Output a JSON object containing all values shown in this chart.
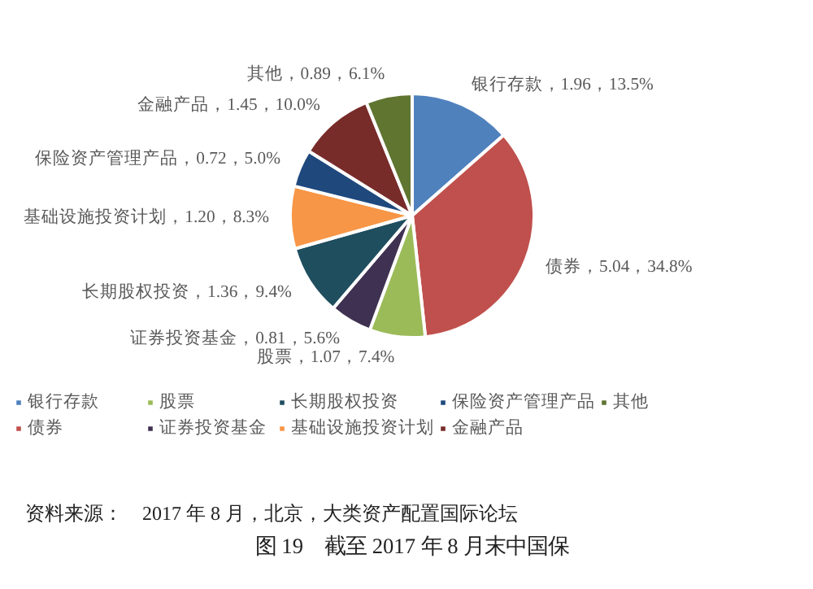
{
  "chart_data": {
    "type": "pie",
    "title": "图 19　截至 2017 年 8 月末中国保",
    "categories": [
      "银行存款",
      "债券",
      "股票",
      "证券投资基金",
      "长期股权投资",
      "基础设施投资计划",
      "保险资产管理产品",
      "金融产品",
      "其他"
    ],
    "values": [
      1.96,
      5.04,
      1.07,
      0.81,
      1.36,
      1.2,
      0.72,
      1.45,
      0.89
    ],
    "colors": [
      "#4f81bd",
      "#c0504d",
      "#9bbb59",
      "#3f3151",
      "#1f4e5f",
      "#f79646",
      "#1f497d",
      "#772c2a",
      "#5f7530"
    ],
    "value_labels": [
      "银行存款，1.96，13.5%",
      "债券，5.04，34.8%",
      "股票，1.07，7.4%",
      "证券投资基金，0.81，5.6%",
      "长期股权投资，1.36，9.4%",
      "基础设施投资计划，1.20，8.3%",
      "保险资产管理产品，0.72，5.0%",
      "金融产品，1.45，10.0%",
      "其他，0.89，6.1%"
    ],
    "legend": "bottom",
    "annotations": [
      "资料来源：　2017 年 8 月，北京，大类资产配置国际论坛"
    ]
  }
}
